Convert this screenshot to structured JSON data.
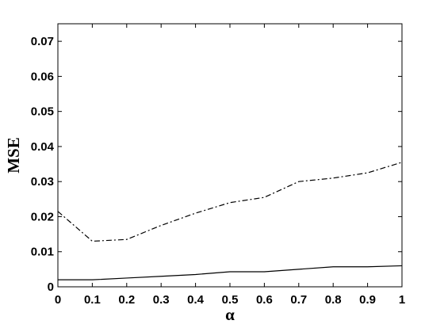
{
  "chart_data": {
    "type": "line",
    "x_label": "α",
    "y_label": "MSE",
    "x": [
      0,
      0.1,
      0.2,
      0.3,
      0.4,
      0.5,
      0.6,
      0.7,
      0.8,
      0.9,
      1
    ],
    "series": [
      {
        "color": "#000000",
        "dash": "dashdot",
        "values": [
          0.0215,
          0.013,
          0.0135,
          0.0175,
          0.021,
          0.024,
          0.0255,
          0.03,
          0.031,
          0.0325,
          0.0355
        ]
      },
      {
        "color": "#000000",
        "dash": "solid",
        "values": [
          0.002,
          0.002,
          0.0025,
          0.003,
          0.0035,
          0.0043,
          0.0043,
          0.005,
          0.0057,
          0.0057,
          0.006
        ]
      }
    ],
    "xlim": [
      0,
      1
    ],
    "xticks": [
      0,
      0.1,
      0.2,
      0.3,
      0.4,
      0.5,
      0.6,
      0.7,
      0.8,
      0.9,
      1
    ],
    "ylim": [
      0,
      0.075
    ],
    "yticks": [
      0,
      0.01,
      0.02,
      0.03,
      0.04,
      0.05,
      0.06,
      0.07
    ],
    "grid": false
  }
}
